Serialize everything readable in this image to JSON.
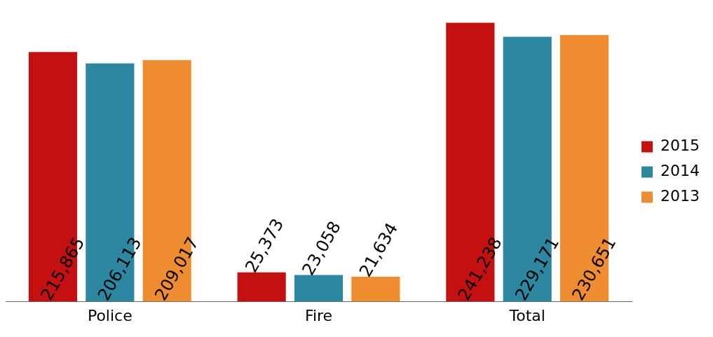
{
  "chart_data": {
    "type": "bar",
    "categories": [
      "Police",
      "Fire",
      "Total"
    ],
    "series": [
      {
        "name": "2015",
        "color": "#c41010",
        "values": [
          215865,
          25373,
          241238
        ],
        "value_labels": [
          "215,865",
          "25,373",
          "241,238"
        ]
      },
      {
        "name": "2014",
        "color": "#2e87a0",
        "values": [
          206113,
          23058,
          229171
        ],
        "value_labels": [
          "206,113",
          "23,058",
          "229,171"
        ]
      },
      {
        "name": "2013",
        "color": "#f08c30",
        "values": [
          209017,
          21634,
          230651
        ],
        "value_labels": [
          "209,017",
          "21,634",
          "230,651"
        ]
      }
    ],
    "legend": "right",
    "grid": false
  }
}
